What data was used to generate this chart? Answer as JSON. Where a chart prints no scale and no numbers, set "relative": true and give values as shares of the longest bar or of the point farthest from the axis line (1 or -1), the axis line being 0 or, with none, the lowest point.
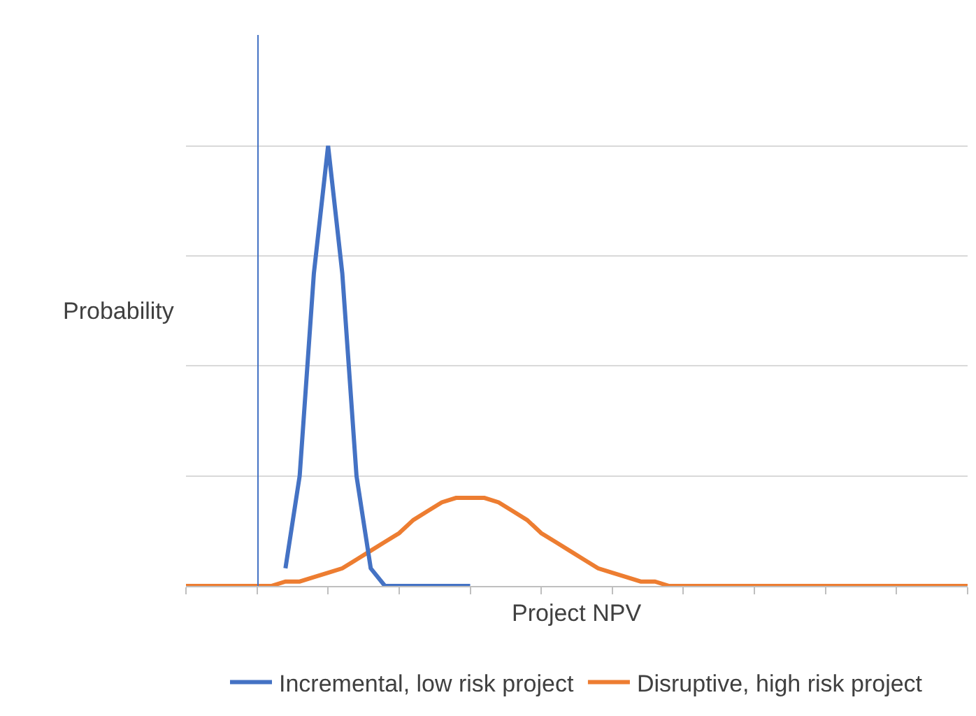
{
  "chart_data": {
    "type": "line",
    "relative": true,
    "xlabel": "Project NPV",
    "ylabel": "Probability",
    "grid": "y",
    "legend": "bottom",
    "marker": "none",
    "line_style": "solid",
    "categories": [
      null,
      null,
      null,
      null,
      null,
      null,
      null,
      null,
      null,
      null,
      null,
      null,
      null,
      null,
      null,
      null,
      null,
      null,
      null,
      null,
      null,
      null,
      null,
      null,
      null,
      null,
      null,
      null,
      null,
      null,
      null,
      null,
      null,
      null,
      null,
      null,
      null,
      null,
      null,
      null,
      null,
      null,
      null,
      null,
      null,
      null,
      null,
      null,
      null,
      null,
      null,
      null,
      null,
      null,
      null,
      null
    ],
    "series": [
      {
        "name": "Incremental, low risk project",
        "color": "#4472c4",
        "values": [
          null,
          null,
          null,
          null,
          null,
          null,
          null,
          0.04,
          0.25,
          0.71,
          1,
          0.71,
          0.25,
          0.04,
          0,
          0,
          0,
          0,
          0,
          0,
          0,
          null,
          null,
          null,
          null,
          null,
          null,
          null,
          null,
          null,
          null,
          null,
          null,
          null,
          null,
          null,
          null,
          null,
          null,
          null,
          null,
          null,
          null,
          null,
          null,
          null,
          null,
          null,
          null,
          null,
          null,
          null,
          null,
          null,
          null,
          null
        ]
      },
      {
        "name": "Disruptive, high risk project",
        "color": "#ed7d31",
        "values": [
          0,
          0,
          0,
          0,
          0,
          0,
          0,
          0.01,
          0.01,
          0.02,
          0.03,
          0.04,
          0.06,
          0.08,
          0.1,
          0.12,
          0.15,
          0.17,
          0.19,
          0.2,
          0.2,
          0.2,
          0.19,
          0.17,
          0.15,
          0.12,
          0.1,
          0.08,
          0.06,
          0.04,
          0.03,
          0.02,
          0.01,
          0.01,
          0,
          0,
          0,
          0,
          0,
          0,
          0,
          0,
          0,
          0,
          0,
          0,
          0,
          0,
          0,
          0,
          0,
          0,
          0,
          0,
          0,
          0
        ]
      }
    ]
  }
}
